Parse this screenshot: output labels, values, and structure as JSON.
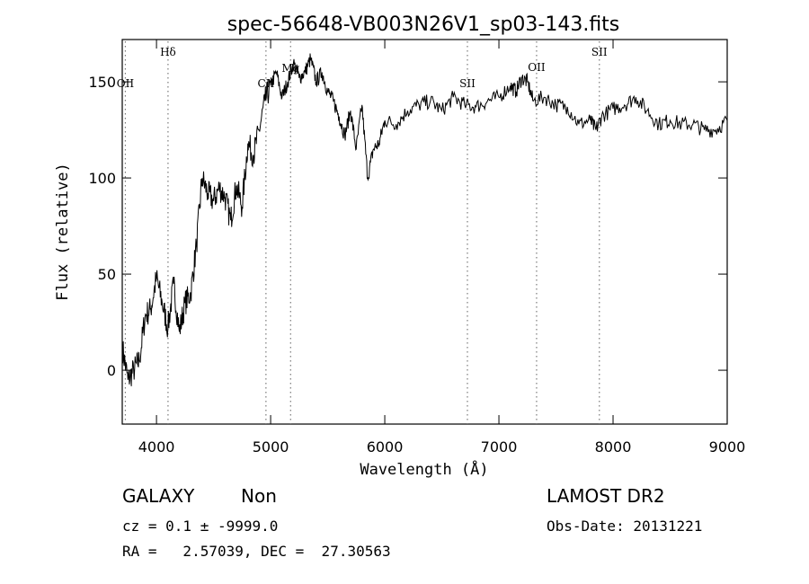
{
  "chart_data": {
    "type": "line",
    "title": "spec-56648-VB003N26V1_sp03-143.fits",
    "xlabel": "Wavelength (Å)",
    "ylabel": "Flux (relative)",
    "xlim": [
      3700,
      9000
    ],
    "ylim": [
      -28,
      172
    ],
    "x_ticks": [
      4000,
      5000,
      6000,
      7000,
      8000,
      9000
    ],
    "y_ticks": [
      0,
      50,
      100,
      150
    ],
    "grid": false,
    "line_color": "#000000",
    "marker_line_color": "#7a7a7a",
    "series": [
      {
        "x": [
          3700,
          3750,
          3800,
          3850,
          3900,
          3950,
          4000,
          4050,
          4100,
          4150,
          4200,
          4250,
          4300,
          4350,
          4400,
          4450,
          4500,
          4550,
          4600,
          4650,
          4700,
          4750,
          4800,
          4850,
          4900,
          4950,
          5000,
          5050,
          5100,
          5150,
          5200,
          5250,
          5300,
          5350,
          5400,
          5450,
          5500,
          5550,
          5600,
          5650,
          5700,
          5750,
          5800,
          5850,
          5900,
          5950,
          6000,
          6100,
          6200,
          6300,
          6400,
          6500,
          6600,
          6700,
          6800,
          6900,
          7000,
          7100,
          7150,
          7200,
          7250,
          7300,
          7400,
          7500,
          7600,
          7700,
          7800,
          7850,
          7900,
          8000,
          8100,
          8200,
          8300,
          8400,
          8500,
          8600,
          8700,
          8800,
          8900,
          9000
        ],
        "y": [
          12,
          -5,
          0,
          5,
          28,
          32,
          48,
          35,
          22,
          45,
          20,
          35,
          40,
          65,
          100,
          92,
          88,
          95,
          90,
          78,
          96,
          85,
          118,
          112,
          125,
          140,
          148,
          155,
          142,
          150,
          160,
          152,
          155,
          162,
          150,
          155,
          145,
          140,
          132,
          122,
          135,
          115,
          138,
          100,
          115,
          118,
          130,
          128,
          135,
          138,
          140,
          135,
          142,
          138,
          137,
          140,
          142,
          148,
          145,
          152,
          150,
          140,
          142,
          138,
          137,
          128,
          130,
          125,
          132,
          136,
          138,
          142,
          135,
          128,
          130,
          128,
          128,
          125,
          125,
          130
        ]
      }
    ],
    "line_markers": [
      {
        "label": "Hδ",
        "x": 4101
      },
      {
        "label": "OII",
        "x": 3727
      },
      {
        "label": "CII",
        "x": 4959
      },
      {
        "label": "Mg",
        "x": 5175
      },
      {
        "label": "SII",
        "x": 6724
      },
      {
        "label": "OII",
        "x": 7330
      },
      {
        "label": "SII",
        "x": 7880
      }
    ]
  },
  "info": {
    "object_class": "GALAXY",
    "subclass": "Non",
    "cz_text": "cz = 0.1 ± -9999.0",
    "radec_text": "RA =   2.57039, DEC =  27.30563",
    "survey": "LAMOST DR2",
    "obs_date": "Obs-Date: 20131221"
  }
}
